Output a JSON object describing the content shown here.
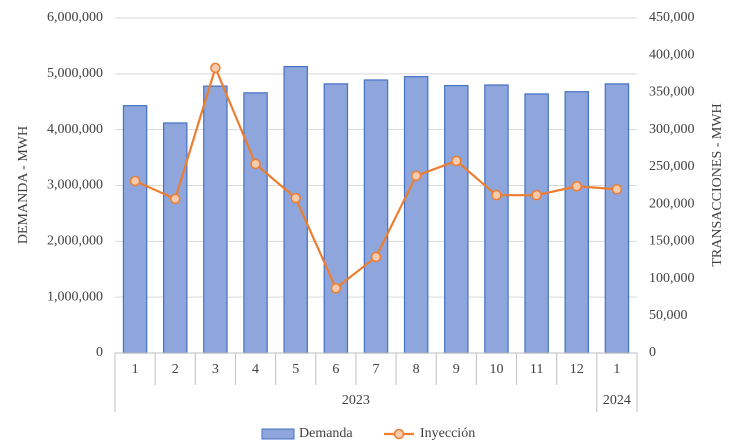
{
  "chart_data": {
    "type": "bar-line",
    "y_label": "DEMANDA - MWH",
    "y2_label": "TRANSACCIONES - MWH",
    "groups": [
      {
        "label": "2023",
        "categories": [
          "1",
          "2",
          "3",
          "4",
          "5",
          "6",
          "7",
          "8",
          "9",
          "10",
          "11",
          "12"
        ]
      },
      {
        "label": "2024",
        "categories": [
          "1"
        ]
      }
    ],
    "series": [
      {
        "name": "Demanda",
        "type": "bar",
        "color": "#8fa6dd",
        "values": [
          4430000,
          4120000,
          4780000,
          4660000,
          5130000,
          4820000,
          4890000,
          4950000,
          4790000,
          4800000,
          4640000,
          4680000,
          4820000
        ]
      },
      {
        "name": "Inyección",
        "type": "line",
        "axis": "y2",
        "color": "#ed7d31",
        "values": [
          231000,
          207000,
          383000,
          254000,
          208000,
          87000,
          129000,
          238000,
          258000,
          212000,
          212000,
          224000,
          220000
        ]
      }
    ],
    "ylim": [
      0,
      6000000
    ],
    "yticks": [
      0,
      {
        "value": 1000000,
        "label": "1,000,000"
      },
      {
        "value": 2000000,
        "label": "2,000,000"
      },
      {
        "value": 3000000,
        "label": "3,000,000"
      },
      {
        "value": 4000000,
        "label": "4,000,000"
      },
      {
        "value": 5000000,
        "label": "5,000,000"
      },
      {
        "value": 6000000,
        "label": "6,000,000"
      }
    ],
    "y2lim": [
      0,
      450000
    ],
    "y2ticks": [
      0,
      {
        "value": 50000,
        "label": "50,000"
      },
      {
        "value": 100000,
        "label": "100,000"
      },
      {
        "value": 150000,
        "label": "150,000"
      },
      {
        "value": 200000,
        "label": "200,000"
      },
      {
        "value": 250000,
        "label": "250,000"
      },
      {
        "value": 300000,
        "label": "300,000"
      },
      {
        "value": 350000,
        "label": "350,000"
      },
      {
        "value": 400000,
        "label": "400,000"
      },
      {
        "value": 450000,
        "label": "450,000"
      }
    ],
    "grid": true,
    "legend": "bottom"
  }
}
